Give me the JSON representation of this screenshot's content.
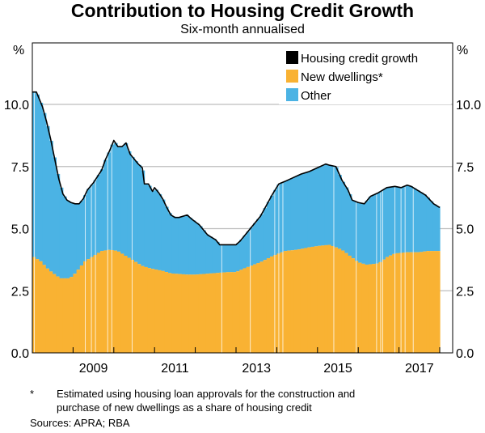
{
  "chart_data": {
    "type": "area",
    "title": "Contribution to Housing Credit Growth",
    "subtitle": "Six-month annualised",
    "ylabel_left": "%",
    "ylabel_right": "%",
    "ylim": [
      0,
      12
    ],
    "yticks": [
      0.0,
      2.5,
      5.0,
      7.5,
      10.0
    ],
    "ytick_labels": [
      "0.0",
      "2.5",
      "5.0",
      "7.5",
      "10.0"
    ],
    "xlim": [
      2008.0,
      2018.3
    ],
    "xtick_years": [
      2009,
      2010,
      2011,
      2012,
      2013,
      2014,
      2015,
      2016,
      2017,
      2018
    ],
    "xlabels": [
      "2009",
      "2011",
      "2013",
      "2015",
      "2017"
    ],
    "grid": true,
    "legend_position": "top-right",
    "legend": [
      {
        "name": "Housing credit growth",
        "color": "#000000"
      },
      {
        "name": "New dwellings*",
        "color": "#F9B233"
      },
      {
        "name": "Other",
        "color": "#4BB3E4"
      }
    ],
    "series": [
      {
        "name": "Housing credit growth",
        "type": "line",
        "points": [
          [
            2008.0,
            10.5
          ],
          [
            2008.1,
            10.5
          ],
          [
            2008.15,
            10.3
          ],
          [
            2008.25,
            9.9
          ],
          [
            2008.35,
            9.3
          ],
          [
            2008.45,
            8.6
          ],
          [
            2008.55,
            7.8
          ],
          [
            2008.65,
            7.0
          ],
          [
            2008.75,
            6.4
          ],
          [
            2008.85,
            6.15
          ],
          [
            2008.95,
            6.05
          ],
          [
            2009.05,
            6.0
          ],
          [
            2009.15,
            6.0
          ],
          [
            2009.25,
            6.2
          ],
          [
            2009.35,
            6.55
          ],
          [
            2009.5,
            6.85
          ],
          [
            2009.6,
            7.1
          ],
          [
            2009.7,
            7.35
          ],
          [
            2009.8,
            7.8
          ],
          [
            2009.9,
            8.15
          ],
          [
            2010.0,
            8.55
          ],
          [
            2010.1,
            8.3
          ],
          [
            2010.2,
            8.3
          ],
          [
            2010.3,
            8.45
          ],
          [
            2010.4,
            8.0
          ],
          [
            2010.5,
            7.8
          ],
          [
            2010.6,
            7.6
          ],
          [
            2010.7,
            7.45
          ],
          [
            2010.75,
            6.8
          ],
          [
            2010.85,
            6.8
          ],
          [
            2010.95,
            6.5
          ],
          [
            2011.0,
            6.65
          ],
          [
            2011.1,
            6.45
          ],
          [
            2011.2,
            6.2
          ],
          [
            2011.3,
            5.85
          ],
          [
            2011.4,
            5.55
          ],
          [
            2011.5,
            5.45
          ],
          [
            2011.6,
            5.45
          ],
          [
            2011.8,
            5.55
          ],
          [
            2011.9,
            5.4
          ],
          [
            2012.1,
            5.15
          ],
          [
            2012.3,
            4.75
          ],
          [
            2012.5,
            4.55
          ],
          [
            2012.6,
            4.35
          ],
          [
            2012.8,
            4.35
          ],
          [
            2013.0,
            4.35
          ],
          [
            2013.1,
            4.5
          ],
          [
            2013.2,
            4.7
          ],
          [
            2013.4,
            5.1
          ],
          [
            2013.6,
            5.5
          ],
          [
            2013.8,
            6.1
          ],
          [
            2013.9,
            6.4
          ],
          [
            2014.05,
            6.8
          ],
          [
            2014.2,
            6.9
          ],
          [
            2014.4,
            7.05
          ],
          [
            2014.6,
            7.2
          ],
          [
            2014.8,
            7.3
          ],
          [
            2015.0,
            7.45
          ],
          [
            2015.2,
            7.6
          ],
          [
            2015.3,
            7.55
          ],
          [
            2015.45,
            7.5
          ],
          [
            2015.6,
            6.95
          ],
          [
            2015.75,
            6.55
          ],
          [
            2015.85,
            6.15
          ],
          [
            2016.0,
            6.05
          ],
          [
            2016.15,
            6.0
          ],
          [
            2016.3,
            6.3
          ],
          [
            2016.5,
            6.45
          ],
          [
            2016.7,
            6.65
          ],
          [
            2016.9,
            6.7
          ],
          [
            2017.05,
            6.65
          ],
          [
            2017.2,
            6.75
          ],
          [
            2017.3,
            6.7
          ],
          [
            2017.45,
            6.55
          ],
          [
            2017.65,
            6.35
          ],
          [
            2017.85,
            6.0
          ],
          [
            2018.0,
            5.85
          ]
        ]
      },
      {
        "name": "New dwellings*",
        "type": "area",
        "color": "#F9B233",
        "points": [
          [
            2008.0,
            3.9
          ],
          [
            2008.2,
            3.7
          ],
          [
            2008.4,
            3.35
          ],
          [
            2008.6,
            3.1
          ],
          [
            2008.7,
            3.0
          ],
          [
            2008.9,
            3.0
          ],
          [
            2009.0,
            3.1
          ],
          [
            2009.15,
            3.4
          ],
          [
            2009.3,
            3.7
          ],
          [
            2009.5,
            3.9
          ],
          [
            2009.7,
            4.1
          ],
          [
            2009.9,
            4.15
          ],
          [
            2010.1,
            4.1
          ],
          [
            2010.3,
            3.9
          ],
          [
            2010.5,
            3.7
          ],
          [
            2010.7,
            3.5
          ],
          [
            2010.9,
            3.4
          ],
          [
            2011.2,
            3.3
          ],
          [
            2011.4,
            3.2
          ],
          [
            2011.8,
            3.15
          ],
          [
            2012.0,
            3.15
          ],
          [
            2012.4,
            3.2
          ],
          [
            2012.8,
            3.25
          ],
          [
            2013.0,
            3.25
          ],
          [
            2013.2,
            3.4
          ],
          [
            2013.6,
            3.65
          ],
          [
            2013.9,
            3.9
          ],
          [
            2014.2,
            4.1
          ],
          [
            2014.5,
            4.15
          ],
          [
            2014.8,
            4.25
          ],
          [
            2015.0,
            4.3
          ],
          [
            2015.3,
            4.35
          ],
          [
            2015.6,
            4.15
          ],
          [
            2015.8,
            3.9
          ],
          [
            2016.0,
            3.65
          ],
          [
            2016.2,
            3.55
          ],
          [
            2016.5,
            3.6
          ],
          [
            2016.7,
            3.85
          ],
          [
            2016.9,
            4.0
          ],
          [
            2017.2,
            4.05
          ],
          [
            2017.5,
            4.05
          ],
          [
            2017.7,
            4.1
          ],
          [
            2018.0,
            4.1
          ]
        ]
      },
      {
        "name": "Other",
        "type": "area",
        "color": "#4BB3E4",
        "note": "Difference between housing credit growth and new dwellings contribution"
      }
    ]
  },
  "footnotes": {
    "star": "*",
    "note_line1": "Estimated using housing loan approvals for the construction and",
    "note_line2": "purchase of new dwellings as a share of housing credit",
    "sources": "Sources: APRA; RBA"
  }
}
